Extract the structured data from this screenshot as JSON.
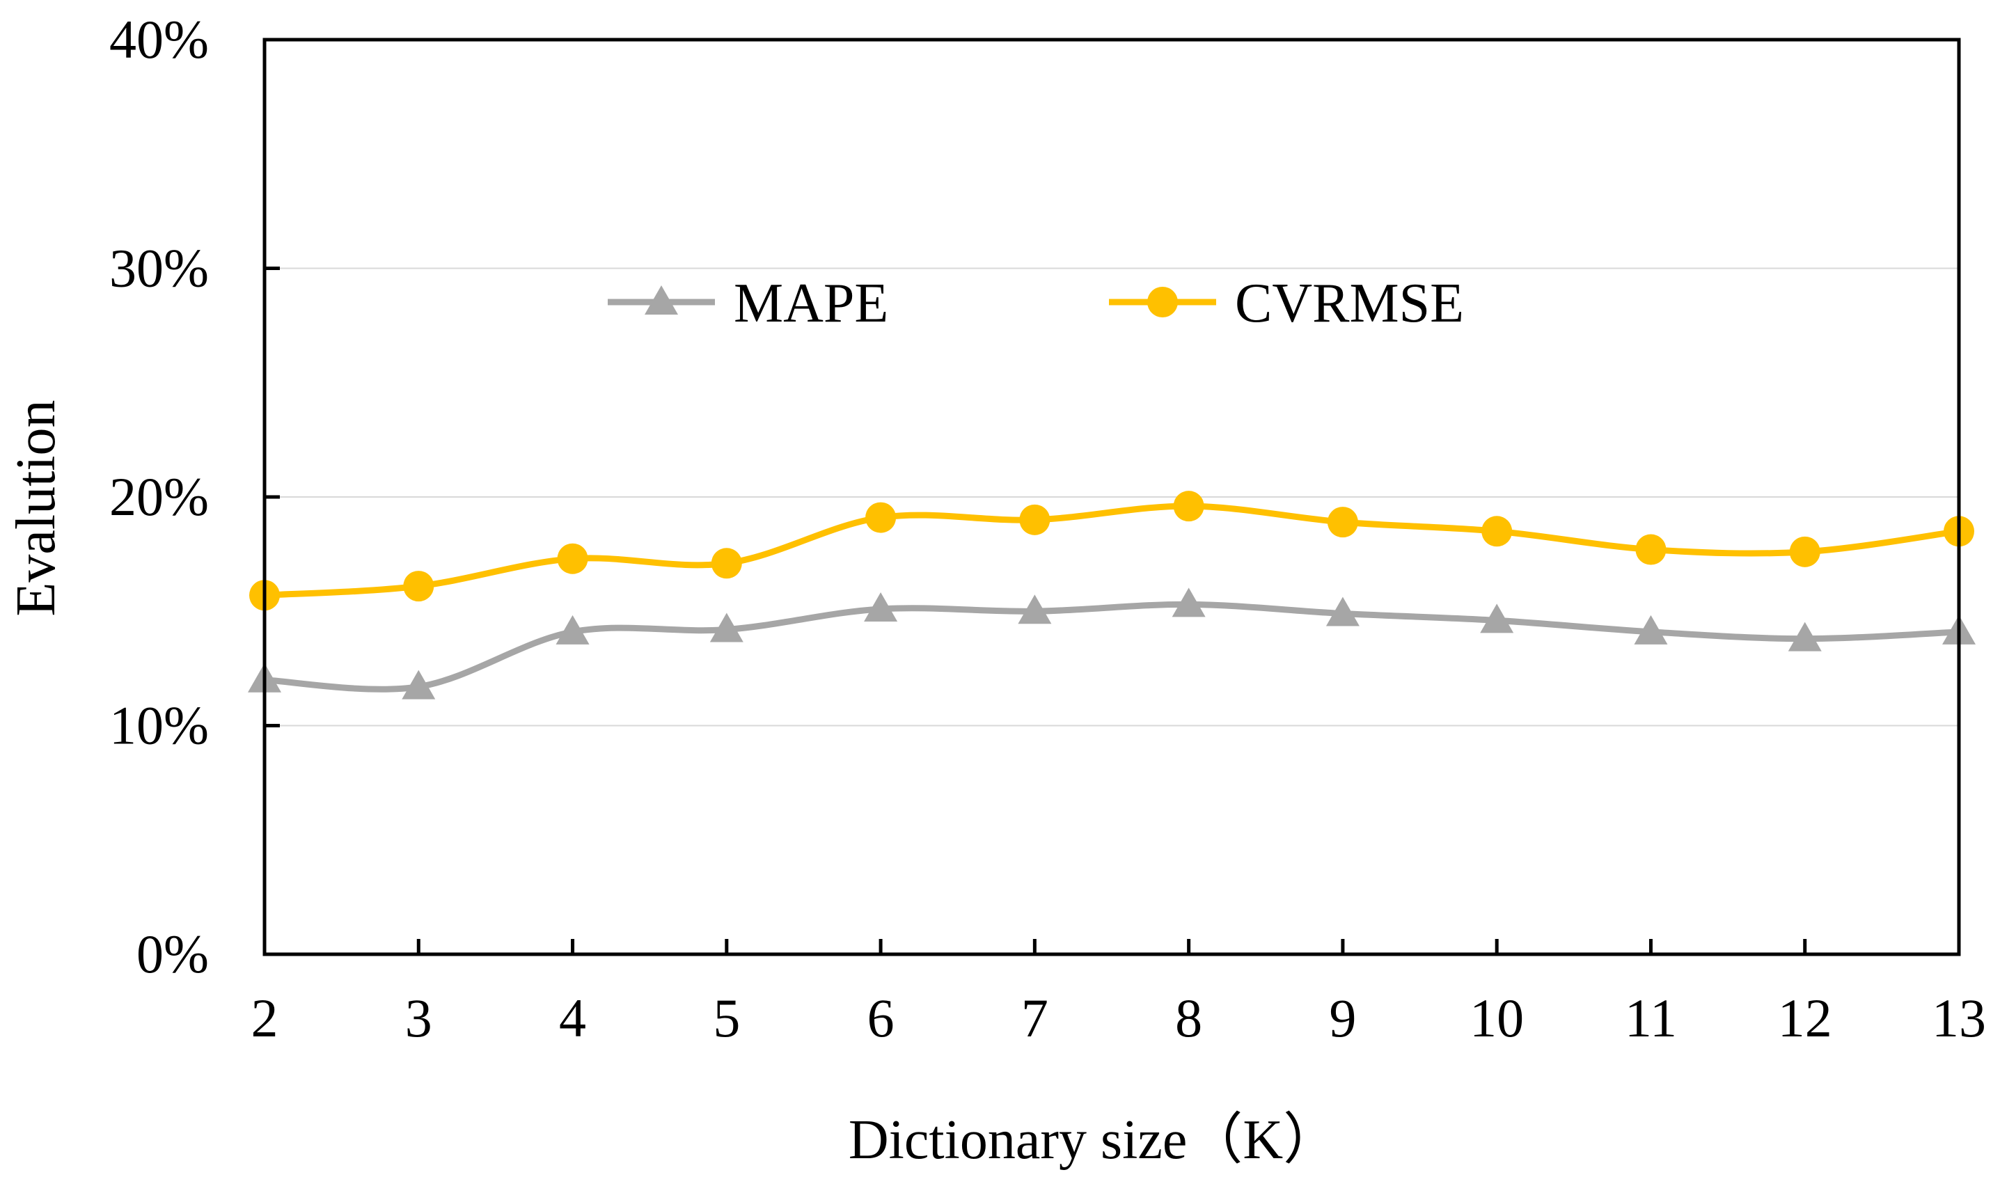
{
  "chart_data": {
    "type": "line",
    "title": "",
    "xlabel": "Dictionary size（K）",
    "ylabel": "Evalution",
    "categories": [
      "2",
      "3",
      "4",
      "5",
      "6",
      "7",
      "8",
      "9",
      "10",
      "11",
      "12",
      "13"
    ],
    "x": [
      2,
      3,
      4,
      5,
      6,
      7,
      8,
      9,
      10,
      11,
      12,
      13
    ],
    "xlim": [
      2,
      13
    ],
    "ylim": [
      0,
      40
    ],
    "yticks": [
      0,
      10,
      20,
      30,
      40
    ],
    "ytick_labels": [
      "0%",
      "10%",
      "20%",
      "30%",
      "40%"
    ],
    "grid": true,
    "legend_position": "top-center",
    "series": [
      {
        "name": "MAPE",
        "marker": "triangle",
        "color": "#A6A6A6",
        "values": [
          12.0,
          11.7,
          14.1,
          14.2,
          15.1,
          15.0,
          15.3,
          14.9,
          14.6,
          14.1,
          13.8,
          14.1
        ]
      },
      {
        "name": "CVRMSE",
        "marker": "circle",
        "color": "#FFC000",
        "values": [
          15.7,
          16.1,
          17.3,
          17.1,
          19.1,
          19.0,
          19.6,
          18.9,
          18.5,
          17.7,
          17.6,
          18.5
        ]
      }
    ]
  }
}
